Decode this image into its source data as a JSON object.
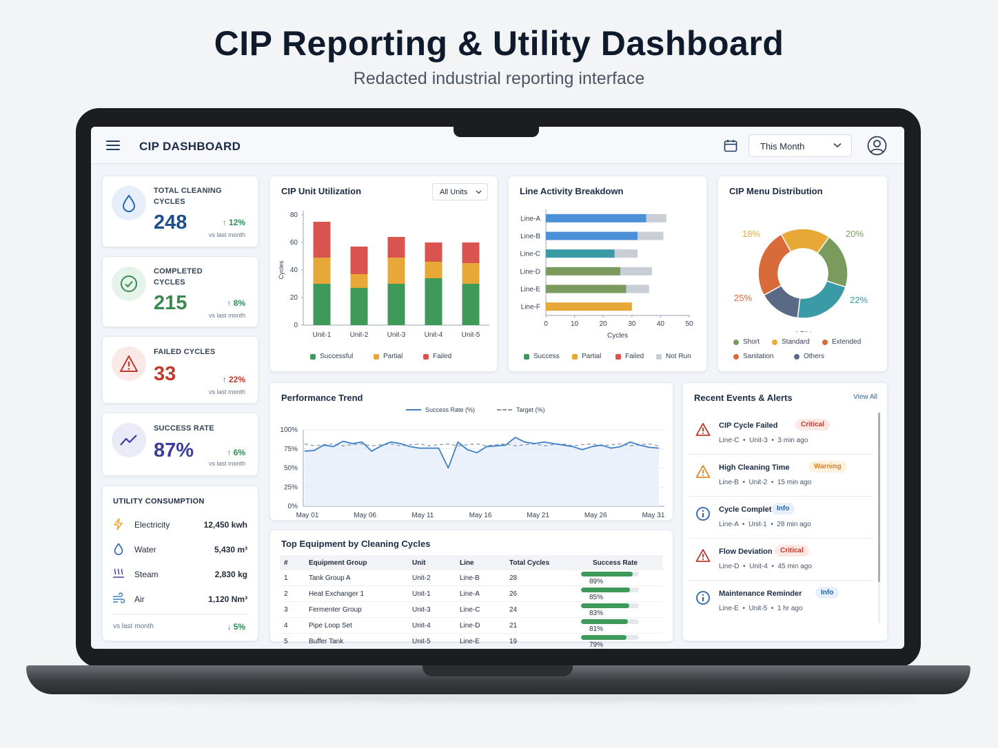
{
  "hero": {
    "title": "CIP Reporting & Utility Dashboard",
    "subtitle": "Redacted industrial reporting interface"
  },
  "header": {
    "title": "CIP DASHBOARD",
    "period": "This Month"
  },
  "kpis": [
    {
      "label_l1": "TOTAL CLEANING",
      "label_l2": "CYCLES",
      "value": "248",
      "delta": "12%",
      "note": "vs last month",
      "color": "#1f4f8f",
      "delta_color": "#2e8b57"
    },
    {
      "label_l1": "COMPLETED",
      "label_l2": "CYCLES",
      "value": "215",
      "delta": "8%",
      "note": "vs last month",
      "color": "#3a8a4f",
      "delta_color": "#2e8b57"
    },
    {
      "label_l1": "FAILED CYCLES",
      "label_l2": "",
      "value": "33",
      "delta": "22%",
      "note": "vs last month",
      "color": "#c0392b",
      "delta_color": "#c0392b"
    },
    {
      "label_l1": "SUCCESS RATE",
      "label_l2": "",
      "value": "87%",
      "delta": "6%",
      "note": "vs last month",
      "color": "#3c3c9a",
      "delta_color": "#2e8b57"
    }
  ],
  "utility": {
    "title": "UTILITY CONSUMPTION",
    "items": [
      {
        "name": "Electricity",
        "value": "12,450 kwh",
        "icon": "lightning-icon"
      },
      {
        "name": "Water",
        "value": "5,430 m³",
        "icon": "water-drop-icon"
      },
      {
        "name": "Steam",
        "value": "2,830 kg",
        "icon": "steam-icon"
      },
      {
        "name": "Air",
        "value": "1,120 Nm³",
        "icon": "wind-icon"
      }
    ],
    "note": "vs last month",
    "delta": "5%"
  },
  "utilization": {
    "title": "CIP Unit Utilization",
    "filter": "All Units",
    "legend": [
      "Successful",
      "Partial",
      "Failed"
    ]
  },
  "activity": {
    "title": "Line Activity Breakdown",
    "legend": [
      "Success",
      "Partial",
      "Failed",
      "Not Run"
    ]
  },
  "menu": {
    "title": "CIP Menu Distribution",
    "legend": [
      "Short",
      "Standard",
      "Extended",
      "Sanitation",
      "Others"
    ]
  },
  "trend": {
    "title": "Performance Trend",
    "legend": [
      "Success Rate (%)",
      "Target (%)"
    ]
  },
  "equipment": {
    "title": "Top Equipment by Cleaning Cycles",
    "headers": [
      "#",
      "Equipment Group",
      "Unit",
      "Line",
      "Total Cycles",
      "Success Rate"
    ],
    "rows": [
      {
        "n": "1",
        "group": "Tank Group A",
        "unit": "Unit-2",
        "line": "Line-B",
        "cycles": "28",
        "rate": "89%",
        "rate_value": 89
      },
      {
        "n": "2",
        "group": "Heat Exchanger 1",
        "unit": "Unit-1",
        "line": "Line-A",
        "cycles": "26",
        "rate": "85%",
        "rate_value": 85
      },
      {
        "n": "3",
        "group": "Fermenter Group",
        "unit": "Unit-3",
        "line": "Line-C",
        "cycles": "24",
        "rate": "83%",
        "rate_value": 83
      },
      {
        "n": "4",
        "group": "Pipe Loop Set",
        "unit": "Unit-4",
        "line": "Line-D",
        "cycles": "21",
        "rate": "81%",
        "rate_value": 81
      },
      {
        "n": "5",
        "group": "Buffer Tank",
        "unit": "Unit-5",
        "line": "Line-E",
        "cycles": "19",
        "rate": "79%",
        "rate_value": 79
      }
    ]
  },
  "events": {
    "title": "Recent Events & Alerts",
    "view_all": "View All",
    "items": [
      {
        "title": "CIP Cycle Failed",
        "badge": "Critical",
        "line": "Line-C",
        "unit": "Unit-3",
        "time": "3 min ago",
        "icon": "warning-icon"
      },
      {
        "title": "High Cleaning Time",
        "badge": "Warning",
        "line": "Line-B",
        "unit": "Unit-2",
        "time": "15 min ago",
        "icon": "warning-icon"
      },
      {
        "title": "Cycle Completed",
        "badge": "Info",
        "line": "Line-A",
        "unit": "Unit-1",
        "time": "28 min ago",
        "icon": "info-icon"
      },
      {
        "title": "Flow Deviation",
        "badge": "Critical",
        "line": "Line-D",
        "unit": "Unit-4",
        "time": "45 min ago",
        "icon": "warning-icon"
      },
      {
        "title": "Maintenance Reminder",
        "badge": "Info",
        "line": "Line-E",
        "unit": "Unit-5",
        "time": "1 hr ago",
        "icon": "info-icon"
      }
    ]
  },
  "colors": {
    "success": "#3f9a5a",
    "partial": "#e8a838",
    "failed": "#d9534f",
    "not_run": "#c8cdd6",
    "blue": "#4a90d9",
    "teal": "#3a9aa5",
    "olive": "#7a9a5e"
  },
  "chart_data": [
    {
      "type": "bar",
      "stacked": true,
      "categories": [
        "Unit-1",
        "Unit-2",
        "Unit-3",
        "Unit-4",
        "Unit-5"
      ],
      "series": [
        {
          "name": "Successful",
          "values": [
            30,
            27,
            30,
            34,
            30
          ]
        },
        {
          "name": "Partial",
          "values": [
            19,
            10,
            19,
            12,
            15
          ]
        },
        {
          "name": "Failed",
          "values": [
            26,
            20,
            15,
            14,
            15
          ]
        }
      ],
      "ylabel": "Cycles",
      "ylim": [
        0,
        80
      ],
      "yticks": [
        "0",
        "20",
        "40",
        "60",
        "80"
      ]
    },
    {
      "type": "bar",
      "orientation": "horizontal",
      "categories": [
        "Line-A",
        "Line-B",
        "Line-C",
        "Line-D",
        "Line-E",
        "Line-F"
      ],
      "series": [
        {
          "name": "Success",
          "values": [
            35,
            32,
            24,
            26,
            28,
            0
          ]
        },
        {
          "name": "Partial",
          "values": [
            0,
            0,
            0,
            0,
            0,
            30
          ]
        },
        {
          "name": "Not Run",
          "values": [
            7,
            9,
            8,
            11,
            8,
            0
          ]
        }
      ],
      "bar_colors": [
        "#4a90d9",
        "#4a90d9",
        "#3a9aa5",
        "#7a9a5e",
        "#7a9a5e",
        "#e8a838"
      ],
      "xlabel": "Cycles",
      "xlim": [
        0,
        50
      ],
      "xticks": [
        "0",
        "10",
        "20",
        "30",
        "40",
        "50"
      ]
    },
    {
      "type": "pie",
      "donut": true,
      "labels": [
        "18%",
        "20%",
        "22%",
        "15%",
        "25%"
      ],
      "values": [
        18,
        20,
        22,
        15,
        25
      ],
      "colors": [
        "#e8a838",
        "#7a9a5e",
        "#3a9aa5",
        "#5a6a85",
        "#d96a3a"
      ]
    },
    {
      "type": "line",
      "x_labels": [
        "May 01",
        "May 06",
        "May 11",
        "May 16",
        "May 21",
        "May 26",
        "May 31"
      ],
      "yticks": [
        "0%",
        "25%",
        "50%",
        "75%",
        "100%"
      ],
      "ylim": [
        0,
        100
      ],
      "series": [
        {
          "name": "Success Rate (%)",
          "values": [
            72,
            73,
            80,
            78,
            85,
            82,
            84,
            72,
            79,
            84,
            82,
            78,
            76,
            76,
            76,
            50,
            84,
            74,
            70,
            78,
            79,
            80,
            90,
            84,
            82,
            84,
            82,
            80,
            78,
            74,
            78,
            80,
            76,
            78,
            84,
            80,
            77,
            76
          ]
        },
        {
          "name": "Target (%)",
          "values": [
            80,
            80,
            80,
            80,
            80,
            80,
            80,
            80,
            80,
            80,
            80,
            80,
            80,
            80,
            80,
            80,
            80,
            80,
            80,
            80,
            80,
            80,
            80,
            80,
            80,
            80,
            80,
            80,
            80,
            80,
            80,
            80,
            80,
            80,
            80,
            80,
            80,
            80
          ]
        }
      ]
    }
  ]
}
